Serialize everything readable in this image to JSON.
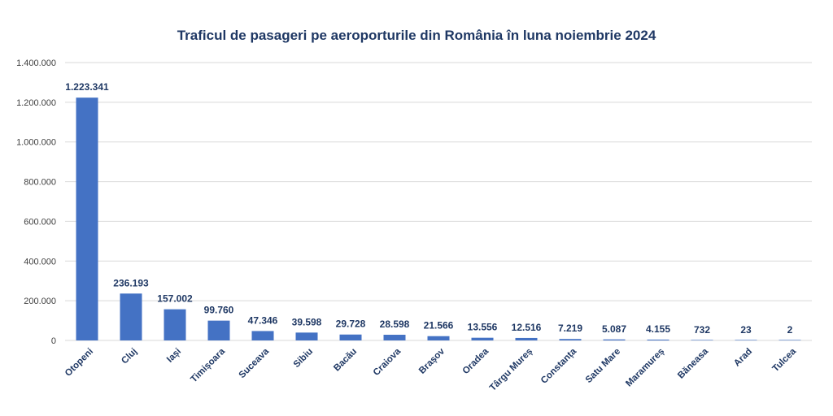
{
  "chart_data": {
    "type": "bar",
    "title": "Traficul de pasageri pe aeroporturile din România în luna noiembrie 2024",
    "xlabel": "",
    "ylabel": "",
    "categories": [
      "Otopeni",
      "Cluj",
      "Iași",
      "Timișoara",
      "Suceava",
      "Sibiu",
      "Bacău",
      "Craiova",
      "Brașov",
      "Oradea",
      "Târgu Mureș",
      "Constanța",
      "Satu Mare",
      "Maramureș",
      "Băneasa",
      "Arad",
      "Tulcea"
    ],
    "values": [
      1223341,
      236193,
      157002,
      99760,
      47346,
      39598,
      29728,
      28598,
      21566,
      13556,
      12516,
      7219,
      5087,
      4155,
      732,
      23,
      2
    ],
    "value_labels": [
      "1.223.341",
      "236.193",
      "157.002",
      "99.760",
      "47.346",
      "39.598",
      "29.728",
      "28.598",
      "21.566",
      "13.556",
      "12.516",
      "7.219",
      "5.087",
      "4.155",
      "732",
      "23",
      "2"
    ],
    "ylim": [
      0,
      1400000
    ],
    "yticks": [
      0,
      200000,
      400000,
      600000,
      800000,
      1000000,
      1200000,
      1400000
    ],
    "ytick_labels": [
      "0",
      "200.000",
      "400.000",
      "600.000",
      "800.000",
      "1.000.000",
      "1.200.000",
      "1.400.000"
    ],
    "grid": true,
    "legend": "none",
    "bar_color": "#4472c4",
    "label_color": "#1f3864"
  }
}
